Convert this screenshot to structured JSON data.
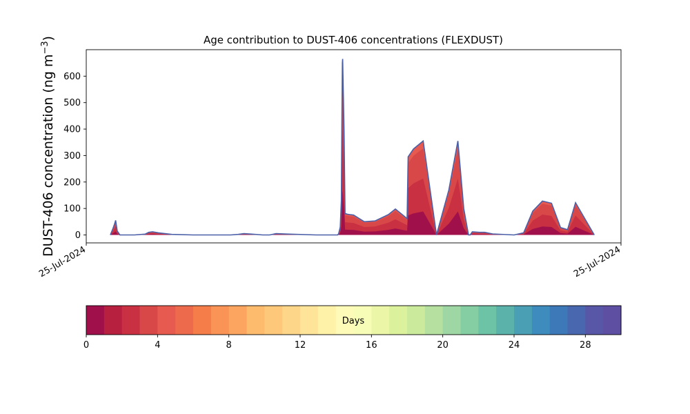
{
  "chart_data": {
    "type": "area",
    "title": "Age contribution to DUST-406 concentrations (FLEXDUST)",
    "ylabel_main": "DUST-406 concentration (ng m",
    "ylabel_sup": "−3",
    "ylabel_close": ")",
    "xlabel": "",
    "ylim": [
      -30,
      700
    ],
    "yticks": [
      0,
      100,
      200,
      300,
      400,
      500,
      600
    ],
    "xlim": [
      0,
      1
    ],
    "xticks": [
      {
        "x": 0,
        "label": "25-Jul-2024"
      },
      {
        "x": 1,
        "label": "25-Jul-2024"
      }
    ],
    "grid": false,
    "series": [
      {
        "color": "#4a5fa8",
        "x": [
          0.045,
          0.05,
          0.053,
          0.055,
          0.058,
          0.063,
          0.075,
          0.09,
          0.11,
          0.117,
          0.124,
          0.135,
          0.16,
          0.2,
          0.25,
          0.27,
          0.284,
          0.295,
          0.31,
          0.33,
          0.343,
          0.355,
          0.38,
          0.43,
          0.47,
          0.472,
          0.475,
          0.477,
          0.478,
          0.479,
          0.4795,
          0.482,
          0.484,
          0.486,
          0.489,
          0.5,
          0.52,
          0.54,
          0.565,
          0.578,
          0.6,
          0.602,
          0.612,
          0.63,
          0.655,
          0.678,
          0.695,
          0.706,
          0.713,
          0.715,
          0.718,
          0.722,
          0.735,
          0.745,
          0.76,
          0.8,
          0.818,
          0.835,
          0.853,
          0.87,
          0.887,
          0.9,
          0.915,
          0.95
        ],
        "y": [
          0,
          25,
          42,
          55,
          15,
          0,
          0,
          0,
          3,
          10,
          12,
          8,
          2,
          0,
          0,
          0,
          2,
          5,
          3,
          0,
          0,
          5,
          3,
          0,
          0,
          5,
          30,
          130,
          400,
          650,
          665,
          400,
          80,
          80,
          78,
          75,
          50,
          53,
          77,
          98,
          62,
          295,
          325,
          355,
          0,
          170,
          355,
          100,
          20,
          0,
          0,
          12,
          10,
          10,
          4,
          0,
          8,
          90,
          128,
          120,
          28,
          20,
          122,
          0
        ]
      }
    ],
    "colorbar": {
      "label": "Days",
      "min": 0,
      "max": 30,
      "ticks": [
        0,
        4,
        8,
        12,
        16,
        20,
        24,
        28
      ],
      "colors": [
        "#a0104a",
        "#b82040",
        "#c93042",
        "#d84848",
        "#e65a50",
        "#ee6a4d",
        "#f57d4a",
        "#f99356",
        "#fba560",
        "#fdbb6e",
        "#fec87a",
        "#fed68a",
        "#fee498",
        "#fef1a8",
        "#fefbb8",
        "#f7fcb6",
        "#ebf7a6",
        "#dcf19c",
        "#cbea9b",
        "#b5e0a0",
        "#9ed7a3",
        "#85cea4",
        "#6dc3a6",
        "#5ab2aa",
        "#4b9fb5",
        "#3d8cbd",
        "#3d79b8",
        "#4967ae",
        "#5856a6",
        "#5e4fa2"
      ]
    }
  }
}
